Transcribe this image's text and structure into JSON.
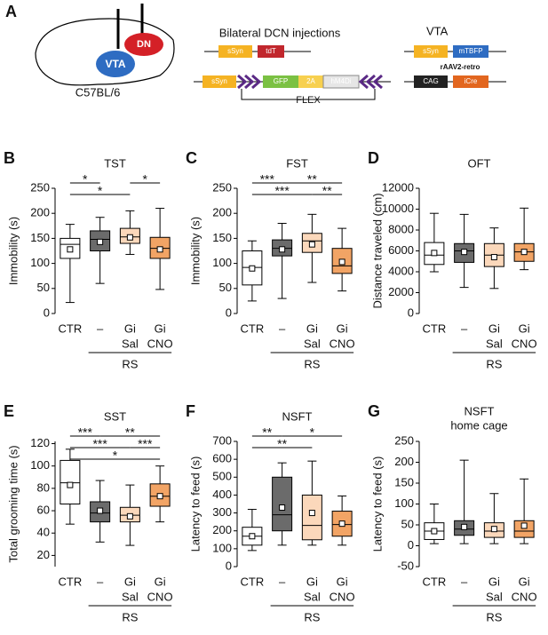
{
  "diagram": {
    "panel": "A",
    "brain": {
      "dn": "DN",
      "vta": "VTA",
      "strain": "C57BL/6"
    },
    "middle": {
      "title": "Bilateral DCN injections",
      "row1": [
        "sSyn",
        "tdT"
      ],
      "row2": [
        "sSyn",
        "GFP",
        "2A",
        "hM4Di"
      ],
      "flex": "FLEX"
    },
    "right": {
      "title": "VTA",
      "row1": [
        "sSyn",
        "mTBFP"
      ],
      "virus": "rAAV2-retro",
      "row2": [
        "CAG",
        "iCre"
      ]
    }
  },
  "chart_data": [
    {
      "type": "box",
      "panel": "B",
      "title": "TST",
      "ylabel": "Immobility (s)",
      "categories": [
        "CTR",
        "–",
        "Gi",
        "Gi"
      ],
      "subgroup_labels": [
        "Sal",
        "CNO"
      ],
      "group_label": "RS",
      "ylim": [
        0,
        250
      ],
      "yticks": [
        0,
        50,
        100,
        150,
        200,
        250
      ],
      "boxes": [
        {
          "min": 22,
          "q1": 110,
          "median": 138,
          "q3": 150,
          "max": 178,
          "mean": 128,
          "color": "#ffffff"
        },
        {
          "min": 60,
          "q1": 125,
          "median": 148,
          "q3": 165,
          "max": 192,
          "mean": 143,
          "color": "#6b6b6b"
        },
        {
          "min": 118,
          "q1": 140,
          "median": 153,
          "q3": 170,
          "max": 205,
          "mean": 152,
          "color": "#fbd8bb"
        },
        {
          "min": 48,
          "q1": 110,
          "median": 130,
          "q3": 152,
          "max": 210,
          "mean": 128,
          "color": "#f2a465"
        }
      ],
      "annotations": [
        {
          "label": "*",
          "pair": [
            0,
            1
          ]
        },
        {
          "label": "*",
          "pair": [
            0,
            2
          ]
        },
        {
          "label": "*",
          "pair": [
            2,
            3
          ]
        }
      ]
    },
    {
      "type": "box",
      "panel": "C",
      "title": "FST",
      "ylabel": "Immobility (s)",
      "categories": [
        "CTR",
        "–",
        "Gi",
        "Gi"
      ],
      "subgroup_labels": [
        "Sal",
        "CNO"
      ],
      "group_label": "RS",
      "ylim": [
        0,
        250
      ],
      "yticks": [
        0,
        50,
        100,
        150,
        200,
        250
      ],
      "boxes": [
        {
          "min": 25,
          "q1": 57,
          "median": 92,
          "q3": 125,
          "max": 145,
          "mean": 90,
          "color": "#ffffff"
        },
        {
          "min": 30,
          "q1": 115,
          "median": 130,
          "q3": 147,
          "max": 180,
          "mean": 128,
          "color": "#6b6b6b"
        },
        {
          "min": 62,
          "q1": 122,
          "median": 145,
          "q3": 160,
          "max": 198,
          "mean": 138,
          "color": "#fbd8bb"
        },
        {
          "min": 45,
          "q1": 80,
          "median": 95,
          "q3": 130,
          "max": 170,
          "mean": 103,
          "color": "#f2a465"
        }
      ],
      "annotations": [
        {
          "label": "***",
          "pair": [
            0,
            1
          ]
        },
        {
          "label": "**",
          "pair": [
            1,
            3
          ]
        },
        {
          "label": "***",
          "pair": [
            0,
            2
          ]
        },
        {
          "label": "**",
          "pair": [
            2,
            3
          ]
        }
      ]
    },
    {
      "type": "box",
      "panel": "D",
      "title": "OFT",
      "ylabel": "Distance traveled (cm)",
      "categories": [
        "CTR",
        "–",
        "Gi",
        "Gi"
      ],
      "subgroup_labels": [
        "Sal",
        "CNO"
      ],
      "group_label": "RS",
      "ylim": [
        0,
        12000
      ],
      "yticks": [
        0,
        2000,
        4000,
        6000,
        8000,
        10000,
        12000
      ],
      "boxes": [
        {
          "min": 4000,
          "q1": 4700,
          "median": 5600,
          "q3": 6800,
          "max": 9600,
          "mean": 5800,
          "color": "#ffffff"
        },
        {
          "min": 2500,
          "q1": 4900,
          "median": 6000,
          "q3": 6700,
          "max": 9500,
          "mean": 5900,
          "color": "#6b6b6b"
        },
        {
          "min": 2400,
          "q1": 4500,
          "median": 5600,
          "q3": 6700,
          "max": 8200,
          "mean": 5400,
          "color": "#fbd8bb"
        },
        {
          "min": 4200,
          "q1": 5000,
          "median": 5900,
          "q3": 6700,
          "max": 10100,
          "mean": 5900,
          "color": "#f2a465"
        }
      ],
      "annotations": []
    },
    {
      "type": "box",
      "panel": "E",
      "title": "SST",
      "ylabel": "Total grooming time (s)",
      "categories": [
        "CTR",
        "–",
        "Gi",
        "Gi"
      ],
      "subgroup_labels": [
        "Sal",
        "CNO"
      ],
      "group_label": "RS",
      "ylim": [
        10,
        122
      ],
      "yticks": [
        20,
        40,
        60,
        80,
        100,
        120
      ],
      "boxes": [
        {
          "min": 48,
          "q1": 66,
          "median": 85,
          "q3": 105,
          "max": 115,
          "mean": 83,
          "color": "#ffffff"
        },
        {
          "min": 32,
          "q1": 50,
          "median": 58,
          "q3": 68,
          "max": 87,
          "mean": 60,
          "color": "#6b6b6b"
        },
        {
          "min": 29,
          "q1": 50,
          "median": 56,
          "q3": 63,
          "max": 83,
          "mean": 55,
          "color": "#fbd8bb"
        },
        {
          "min": 50,
          "q1": 64,
          "median": 73,
          "q3": 84,
          "max": 100,
          "mean": 73,
          "color": "#f2a465"
        }
      ],
      "annotations": [
        {
          "label": "***",
          "pair": [
            0,
            1
          ]
        },
        {
          "label": "**",
          "pair": [
            1,
            3
          ]
        },
        {
          "label": "***",
          "pair": [
            0,
            2
          ]
        },
        {
          "label": "***",
          "pair": [
            2,
            3
          ]
        },
        {
          "label": "*",
          "pair": [
            0,
            3
          ]
        }
      ]
    },
    {
      "type": "box",
      "panel": "F",
      "title": "NSFT",
      "ylabel": "Latency to feed (s)",
      "categories": [
        "CTR",
        "–",
        "Gi",
        "Gi"
      ],
      "subgroup_labels": [
        "Sal",
        "CNO"
      ],
      "group_label": "RS",
      "ylim": [
        0,
        700
      ],
      "yticks": [
        0,
        100,
        200,
        300,
        400,
        500,
        600,
        700
      ],
      "boxes": [
        {
          "min": 90,
          "q1": 120,
          "median": 170,
          "q3": 220,
          "max": 320,
          "mean": 170,
          "color": "#ffffff"
        },
        {
          "min": 120,
          "q1": 200,
          "median": 290,
          "q3": 500,
          "max": 580,
          "mean": 330,
          "color": "#6b6b6b"
        },
        {
          "min": 120,
          "q1": 150,
          "median": 230,
          "q3": 400,
          "max": 590,
          "mean": 300,
          "color": "#fbd8bb"
        },
        {
          "min": 120,
          "q1": 170,
          "median": 235,
          "q3": 310,
          "max": 395,
          "mean": 240,
          "color": "#f2a465"
        }
      ],
      "annotations": [
        {
          "label": "**",
          "pair": [
            0,
            1
          ]
        },
        {
          "label": "*",
          "pair": [
            1,
            3
          ]
        },
        {
          "label": "**",
          "pair": [
            0,
            2
          ]
        }
      ]
    },
    {
      "type": "box",
      "panel": "G",
      "title": [
        "NSFT",
        "home cage"
      ],
      "ylabel": "Latency to feed (s)",
      "categories": [
        "CTR",
        "–",
        "Gi",
        "Gi"
      ],
      "subgroup_labels": [
        "Sal",
        "CNO"
      ],
      "group_label": "RS",
      "ylim": [
        -50,
        250
      ],
      "yticks": [
        -50,
        0,
        50,
        100,
        150,
        200,
        250
      ],
      "boxes": [
        {
          "min": 5,
          "q1": 15,
          "median": 35,
          "q3": 55,
          "max": 100,
          "mean": 35,
          "color": "#ffffff"
        },
        {
          "min": 5,
          "q1": 25,
          "median": 40,
          "q3": 60,
          "max": 205,
          "mean": 45,
          "color": "#6b6b6b"
        },
        {
          "min": 5,
          "q1": 20,
          "median": 35,
          "q3": 55,
          "max": 125,
          "mean": 40,
          "color": "#fbd8bb"
        },
        {
          "min": 5,
          "q1": 20,
          "median": 35,
          "q3": 60,
          "max": 160,
          "mean": 48,
          "color": "#f2a465"
        }
      ],
      "annotations": []
    }
  ]
}
